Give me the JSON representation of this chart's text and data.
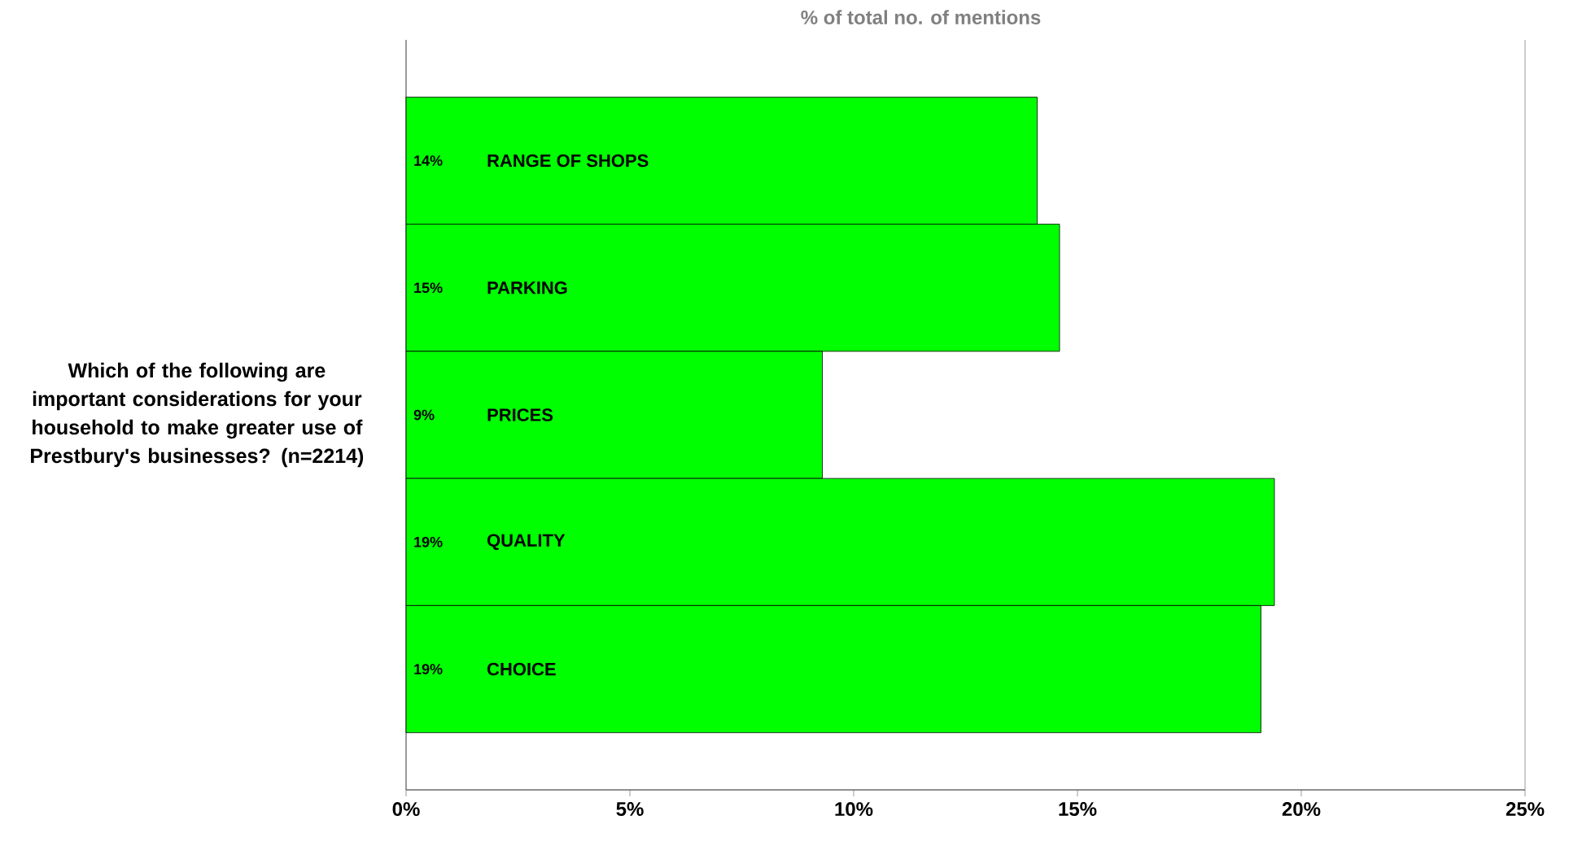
{
  "chart_data": {
    "type": "bar",
    "orientation": "horizontal",
    "xlabel": "% of total no. of mentions",
    "ylabel": "Which of the following are important considerations for your household to make greater use of Prestbury's businesses? (n=2214)",
    "categories": [
      "RANGE OF SHOPS",
      "PARKING",
      "PRICES",
      "QUALITY",
      "CHOICE"
    ],
    "values": [
      14.1,
      14.6,
      9.3,
      19.4,
      19.1
    ],
    "value_labels": [
      "14%",
      "15%",
      "9%",
      "19%",
      "19%"
    ],
    "color": "#00ff00",
    "xlim": [
      0,
      25
    ],
    "xticks": [
      {
        "value": 0,
        "label": "0%"
      },
      {
        "value": 5,
        "label": "5%"
      },
      {
        "value": 10,
        "label": "10%"
      },
      {
        "value": 15,
        "label": "15%"
      },
      {
        "value": 20,
        "label": "20%"
      },
      {
        "value": 25,
        "label": "25%"
      }
    ]
  }
}
